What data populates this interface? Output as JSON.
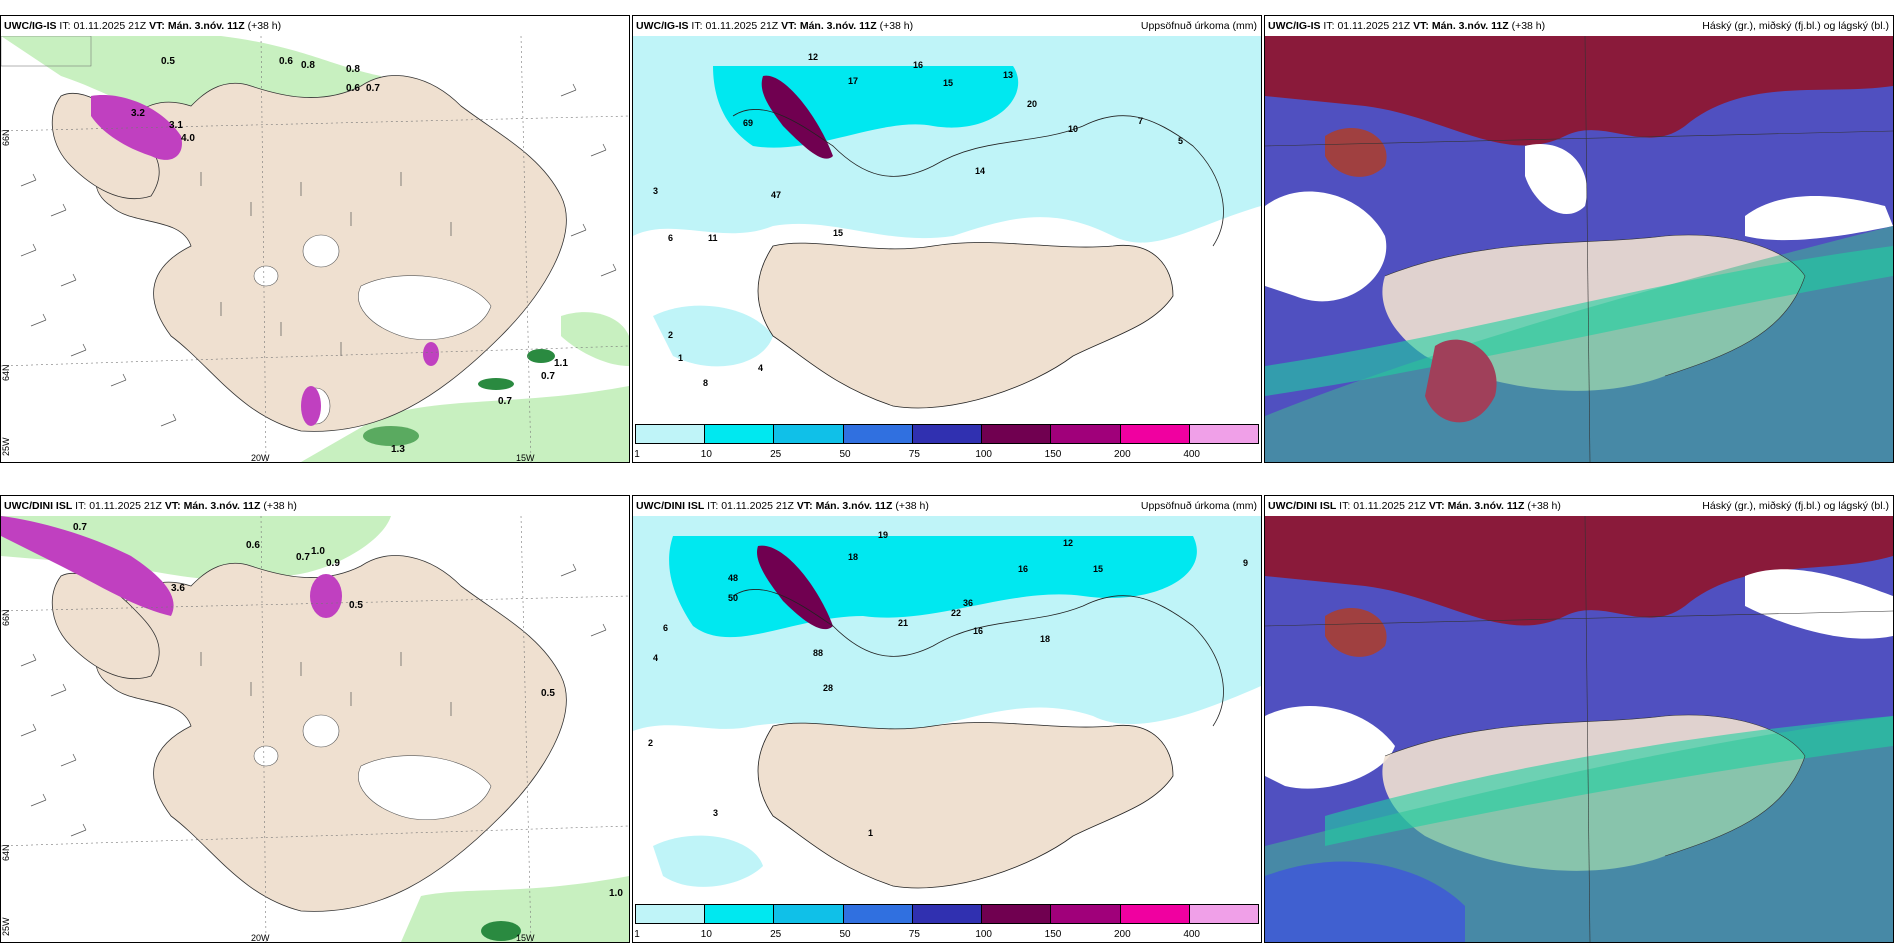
{
  "rows": [
    {
      "model": "UWC/IG-IS",
      "it_label": "IT:",
      "it_value": "01.11.2025 21Z",
      "vt_label": "VT:",
      "vt_value": "Mán. 3.nóv. 11Z",
      "lead": "(+38 h)"
    },
    {
      "model": "UWC/DINI ISL",
      "it_label": "IT:",
      "it_value": "01.11.2025 21Z",
      "vt_label": "VT:",
      "vt_value": "Mán. 3.nóv. 11Z",
      "lead": "(+38 h)"
    }
  ],
  "panel_titles": {
    "precip": "Uppsöfnuð úrkoma (mm)",
    "clouds": "Háský (gr.), miðský (fj.bl.) og lágský (bl.)"
  },
  "grid_labels": {
    "lon_20": "20W",
    "lon_15": "15W",
    "lat_66": "66N",
    "lat_64": "64N",
    "lon_25": "25W"
  },
  "colorbar": {
    "ticks": [
      "1",
      "10",
      "25",
      "50",
      "75",
      "100",
      "150",
      "200",
      "400"
    ],
    "colors": [
      "#bff4f8",
      "#00e8f0",
      "#10c0e8",
      "#3070e0",
      "#3030b0",
      "#700050",
      "#a0007a",
      "#f000a0",
      "#f0a0e8"
    ]
  },
  "colors": {
    "land": "#efe0d0",
    "sea_ice_free": "#ffffff",
    "light_green": "#c8f0c0",
    "dark_green": "#2a8a40",
    "magenta": "#c040c0",
    "cyan_precip": "#bff4f8",
    "high_cloud": "#8a1a3a",
    "mid_cloud": "#5050c0",
    "low_cloud": "#40b890"
  },
  "wind_values_top": [
    "0.5",
    "0.6",
    "0.8",
    "0.8",
    "0.6",
    "0.7",
    "3.2",
    "4.0",
    "3.1",
    "0.7",
    "1.1",
    "0.7",
    "1.3"
  ],
  "wind_values_bottom": [
    "0.7",
    "0.6",
    "0.7",
    "1.0",
    "0.9",
    "3.6",
    "0.5",
    "0.5",
    "1.0"
  ],
  "precip_values_top": [
    "12",
    "16",
    "17",
    "15",
    "13",
    "10",
    "7",
    "5",
    "3",
    "6",
    "4",
    "1",
    "2",
    "8",
    "11",
    "14",
    "20",
    "15",
    "47",
    "69"
  ],
  "precip_values_bottom": [
    "19",
    "18",
    "16",
    "12",
    "15",
    "21",
    "36",
    "22",
    "16",
    "18",
    "9",
    "6",
    "4",
    "2",
    "1",
    "3",
    "88",
    "48",
    "50",
    "28"
  ]
}
